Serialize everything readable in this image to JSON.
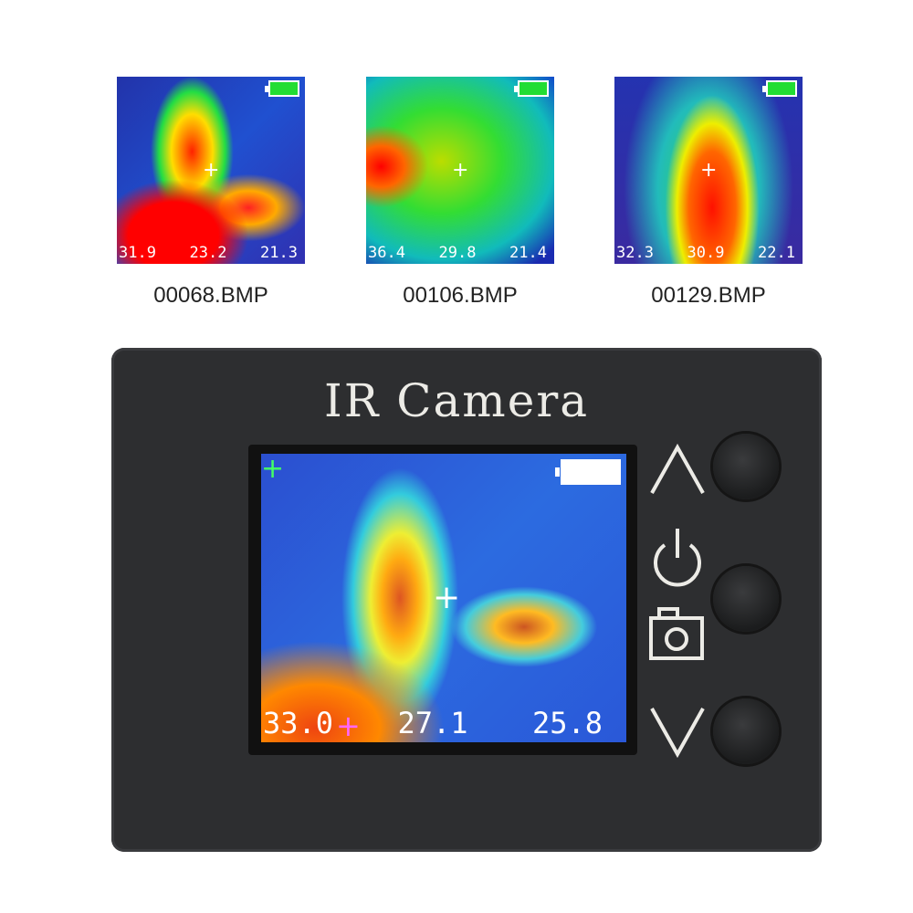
{
  "thumbnails": [
    {
      "file": "00068.BMP",
      "readings": [
        "31.9",
        "23.2",
        "21.3"
      ]
    },
    {
      "file": "00106.BMP",
      "readings": [
        "36.4",
        "29.8",
        "21.4"
      ]
    },
    {
      "file": "00129.BMP",
      "readings": [
        "32.3",
        "30.9",
        "22.1"
      ]
    }
  ],
  "device": {
    "title": "IR Camera",
    "screen": {
      "readings": [
        "33.0",
        "27.1",
        "25.8"
      ],
      "battery": "full"
    },
    "buttons": [
      {
        "icon": "up-arrow-icon"
      },
      {
        "icon": "power-icon"
      },
      {
        "icon": "camera-icon"
      },
      {
        "icon": "down-arrow-icon"
      }
    ]
  }
}
